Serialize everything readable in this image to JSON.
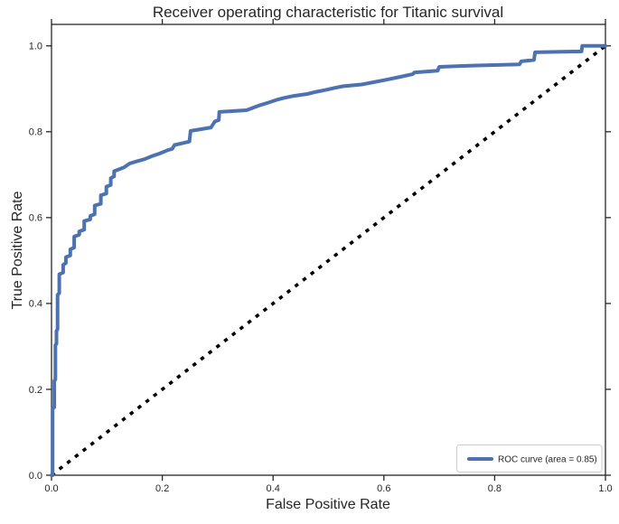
{
  "chart_data": {
    "type": "line",
    "title": "Receiver operating characteristic for Titanic survival",
    "xlabel": "False Positive Rate",
    "ylabel": "True Positive Rate",
    "xlim": [
      0.0,
      1.0
    ],
    "ylim": [
      0.0,
      1.05
    ],
    "grid": false,
    "x_ticks": [
      0.0,
      0.2,
      0.4,
      0.6,
      0.8,
      1.0
    ],
    "x_tick_labels": [
      "0.0",
      "0.2",
      "0.4",
      "0.6",
      "0.8",
      "1.0"
    ],
    "y_ticks": [
      0.0,
      0.2,
      0.4,
      0.6,
      0.8,
      1.0
    ],
    "y_tick_labels": [
      "0.0",
      "0.2",
      "0.4",
      "0.6",
      "0.8",
      "1.0"
    ],
    "legend": {
      "position": "lower right",
      "entries": [
        {
          "label": "ROC curve (area = 0.85)",
          "color": "#4C72B0",
          "style": "solid"
        }
      ]
    },
    "series": [
      {
        "name": "ROC curve",
        "auc": 0.85,
        "color": "#4C72B0",
        "linewidth": 4,
        "style": "solid",
        "points": [
          [
            0.0,
            0.0
          ],
          [
            0.002,
            0.0
          ],
          [
            0.002,
            0.155
          ],
          [
            0.005,
            0.158
          ],
          [
            0.005,
            0.22
          ],
          [
            0.007,
            0.223
          ],
          [
            0.007,
            0.303
          ],
          [
            0.009,
            0.306
          ],
          [
            0.009,
            0.336
          ],
          [
            0.011,
            0.34
          ],
          [
            0.011,
            0.42
          ],
          [
            0.014,
            0.424
          ],
          [
            0.014,
            0.468
          ],
          [
            0.021,
            0.472
          ],
          [
            0.021,
            0.49
          ],
          [
            0.026,
            0.494
          ],
          [
            0.026,
            0.508
          ],
          [
            0.034,
            0.512
          ],
          [
            0.034,
            0.526
          ],
          [
            0.041,
            0.53
          ],
          [
            0.041,
            0.556
          ],
          [
            0.05,
            0.56
          ],
          [
            0.05,
            0.568
          ],
          [
            0.059,
            0.572
          ],
          [
            0.059,
            0.592
          ],
          [
            0.07,
            0.596
          ],
          [
            0.07,
            0.604
          ],
          [
            0.078,
            0.608
          ],
          [
            0.078,
            0.628
          ],
          [
            0.089,
            0.632
          ],
          [
            0.089,
            0.652
          ],
          [
            0.099,
            0.656
          ],
          [
            0.099,
            0.672
          ],
          [
            0.107,
            0.676
          ],
          [
            0.107,
            0.692
          ],
          [
            0.113,
            0.696
          ],
          [
            0.113,
            0.708
          ],
          [
            0.121,
            0.712
          ],
          [
            0.131,
            0.717
          ],
          [
            0.141,
            0.726
          ],
          [
            0.154,
            0.731
          ],
          [
            0.168,
            0.736
          ],
          [
            0.181,
            0.743
          ],
          [
            0.195,
            0.749
          ],
          [
            0.21,
            0.757
          ],
          [
            0.218,
            0.76
          ],
          [
            0.222,
            0.769
          ],
          [
            0.236,
            0.773
          ],
          [
            0.249,
            0.777
          ],
          [
            0.251,
            0.802
          ],
          [
            0.27,
            0.806
          ],
          [
            0.288,
            0.81
          ],
          [
            0.295,
            0.824
          ],
          [
            0.302,
            0.827
          ],
          [
            0.303,
            0.846
          ],
          [
            0.352,
            0.85
          ],
          [
            0.364,
            0.856
          ],
          [
            0.377,
            0.862
          ],
          [
            0.392,
            0.868
          ],
          [
            0.406,
            0.874
          ],
          [
            0.42,
            0.879
          ],
          [
            0.435,
            0.883
          ],
          [
            0.462,
            0.888
          ],
          [
            0.478,
            0.893
          ],
          [
            0.494,
            0.897
          ],
          [
            0.511,
            0.902
          ],
          [
            0.527,
            0.906
          ],
          [
            0.56,
            0.91
          ],
          [
            0.576,
            0.914
          ],
          [
            0.604,
            0.921
          ],
          [
            0.63,
            0.928
          ],
          [
            0.652,
            0.934
          ],
          [
            0.655,
            0.938
          ],
          [
            0.697,
            0.942
          ],
          [
            0.7,
            0.951
          ],
          [
            0.76,
            0.954
          ],
          [
            0.845,
            0.957
          ],
          [
            0.848,
            0.964
          ],
          [
            0.871,
            0.967
          ],
          [
            0.873,
            0.985
          ],
          [
            0.957,
            0.987
          ],
          [
            0.958,
            1.0
          ],
          [
            1.0,
            1.0
          ]
        ]
      },
      {
        "name": "chance diagonal",
        "color": "#000000",
        "linewidth": 3.6,
        "style": "dotted",
        "points": [
          [
            0.0,
            0.0
          ],
          [
            1.0,
            1.0
          ]
        ]
      }
    ],
    "colors": {
      "curve": "#4C72B0",
      "diagonal": "#000000",
      "spine": "#262626",
      "text": "#262626",
      "legend_border": "#cccccc",
      "background": "#ffffff"
    }
  }
}
